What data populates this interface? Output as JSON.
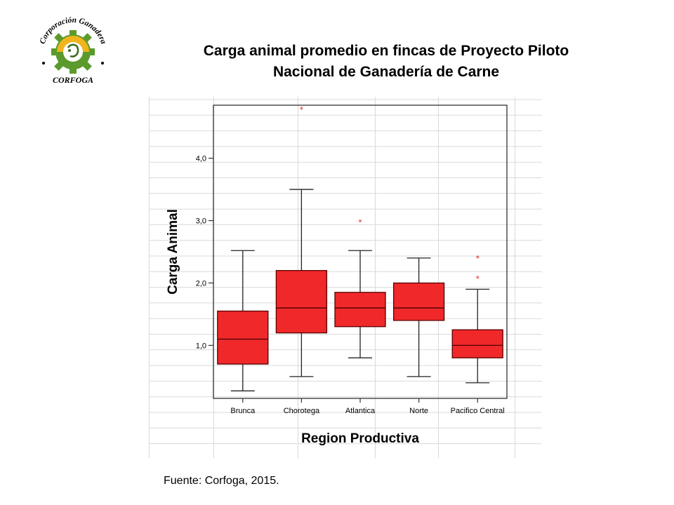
{
  "logo": {
    "arc_text": "Corporación Ganadera",
    "bottom_text": "CORFOGA",
    "colors": {
      "gear_green": "#5b9a2c",
      "gear_yellow": "#f0b41c",
      "text": "#000000"
    }
  },
  "title": {
    "line1": "Carga animal promedio en fincas de Proyecto Piloto",
    "line2": "Nacional de Ganadería de Carne"
  },
  "source": "Fuente: Corfoga, 2015.",
  "chart_data": {
    "type": "box",
    "xlabel": "Region Productiva",
    "ylabel": "Carga Animal",
    "yticks": [
      {
        "value": 1.0,
        "label": "1,0"
      },
      {
        "value": 2.0,
        "label": "2,0"
      },
      {
        "value": 3.0,
        "label": "3,0"
      },
      {
        "value": 4.0,
        "label": "4,0"
      }
    ],
    "ylim": [
      0.15,
      4.85
    ],
    "grid": true,
    "colors": {
      "box_fill": "#f0282a",
      "box_stroke": "#5a0000",
      "outlier": "#e02020",
      "grid": "#d9d9d9"
    },
    "categories": [
      "Brunca",
      "Chorotega",
      "Atlantica",
      "Norte",
      "Pacifico Central"
    ],
    "boxes": [
      {
        "category": "Brunca",
        "min": 0.27,
        "q1": 0.7,
        "median": 1.1,
        "q3": 1.55,
        "max": 2.52,
        "outliers": []
      },
      {
        "category": "Chorotega",
        "min": 0.5,
        "q1": 1.2,
        "median": 1.6,
        "q3": 2.2,
        "max": 3.5,
        "outliers": [
          4.78
        ]
      },
      {
        "category": "Atlantica",
        "min": 0.8,
        "q1": 1.3,
        "median": 1.6,
        "q3": 1.85,
        "max": 2.52,
        "outliers": [
          2.98
        ]
      },
      {
        "category": "Norte",
        "min": 0.5,
        "q1": 1.4,
        "median": 1.6,
        "q3": 2.0,
        "max": 2.4,
        "outliers": []
      },
      {
        "category": "Pacifico Central",
        "min": 0.4,
        "q1": 0.8,
        "median": 1.0,
        "q3": 1.25,
        "max": 1.9,
        "outliers": [
          2.4,
          2.07
        ]
      }
    ]
  }
}
